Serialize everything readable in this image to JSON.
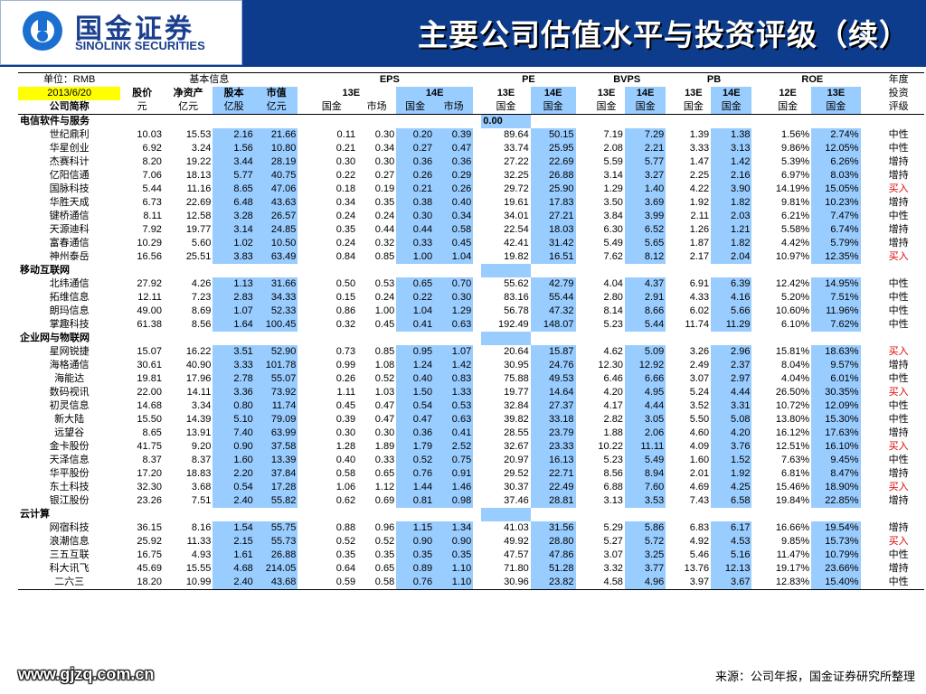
{
  "header": {
    "logo_cn": "国金证券",
    "logo_en": "SINOLINK SECURITIES",
    "title": "主要公司估值水平与投资评级（续）"
  },
  "table": {
    "unit_label": "单位：RMB",
    "date": "2013/6/20",
    "col_company": "公司简称",
    "group_basic": "基本信息",
    "group_eps": "EPS",
    "group_pe": "PE",
    "group_bvps": "BVPS",
    "group_pb": "PB",
    "group_roe": "ROE",
    "rating_header": [
      "年度",
      "投资",
      "评级"
    ],
    "basic_cols": [
      "股价",
      "净资产",
      "股本",
      "市值"
    ],
    "basic_units": [
      "元",
      "亿元",
      "亿股",
      "亿元"
    ],
    "years": [
      "13E",
      "14E",
      "13E",
      "14E",
      "13E",
      "14E",
      "13E",
      "14E",
      "12E",
      "13E"
    ],
    "sources": [
      "国金",
      "市场",
      "国金",
      "市场",
      "国金",
      "国金",
      "国金",
      "国金",
      "国金",
      "国金",
      "国金",
      "国金"
    ],
    "extra_value": "0.00",
    "sections": [
      {
        "name": "电信软件与服务",
        "rows": [
          {
            "name": "世纪鼎利",
            "v": [
              "10.03",
              "15.53",
              "2.16",
              "21.66",
              "0.11",
              "0.30",
              "0.20",
              "0.39",
              "89.64",
              "50.15",
              "7.19",
              "7.29",
              "1.39",
              "1.38",
              "1.56%",
              "2.74%"
            ],
            "rating": "中性"
          },
          {
            "name": "华星创业",
            "v": [
              "6.92",
              "3.24",
              "1.56",
              "10.80",
              "0.21",
              "0.34",
              "0.27",
              "0.47",
              "33.74",
              "25.95",
              "2.08",
              "2.21",
              "3.33",
              "3.13",
              "9.86%",
              "12.05%"
            ],
            "rating": "中性"
          },
          {
            "name": "杰赛科计",
            "v": [
              "8.20",
              "19.22",
              "3.44",
              "28.19",
              "0.30",
              "0.30",
              "0.36",
              "0.36",
              "27.22",
              "22.69",
              "5.59",
              "5.77",
              "1.47",
              "1.42",
              "5.39%",
              "6.26%"
            ],
            "rating": "增持"
          },
          {
            "name": "亿阳信通",
            "v": [
              "7.06",
              "18.13",
              "5.77",
              "40.75",
              "0.22",
              "0.27",
              "0.26",
              "0.29",
              "32.25",
              "26.88",
              "3.14",
              "3.27",
              "2.25",
              "2.16",
              "6.97%",
              "8.03%"
            ],
            "rating": "增持"
          },
          {
            "name": "国脉科技",
            "v": [
              "5.44",
              "11.16",
              "8.65",
              "47.06",
              "0.18",
              "0.19",
              "0.21",
              "0.26",
              "29.72",
              "25.90",
              "1.29",
              "1.40",
              "4.22",
              "3.90",
              "14.19%",
              "15.05%"
            ],
            "rating": "买入"
          },
          {
            "name": "华胜天成",
            "v": [
              "6.73",
              "22.69",
              "6.48",
              "43.63",
              "0.34",
              "0.35",
              "0.38",
              "0.40",
              "19.61",
              "17.83",
              "3.50",
              "3.69",
              "1.92",
              "1.82",
              "9.81%",
              "10.23%"
            ],
            "rating": "增持"
          },
          {
            "name": "键桥通信",
            "v": [
              "8.11",
              "12.58",
              "3.28",
              "26.57",
              "0.24",
              "0.24",
              "0.30",
              "0.34",
              "34.01",
              "27.21",
              "3.84",
              "3.99",
              "2.11",
              "2.03",
              "6.21%",
              "7.47%"
            ],
            "rating": "中性"
          },
          {
            "name": "天源迪科",
            "v": [
              "7.92",
              "19.77",
              "3.14",
              "24.85",
              "0.35",
              "0.44",
              "0.44",
              "0.58",
              "22.54",
              "18.03",
              "6.30",
              "6.52",
              "1.26",
              "1.21",
              "5.58%",
              "6.74%"
            ],
            "rating": "增持"
          },
          {
            "name": "富春通信",
            "v": [
              "10.29",
              "5.60",
              "1.02",
              "10.50",
              "0.24",
              "0.32",
              "0.33",
              "0.45",
              "42.41",
              "31.42",
              "5.49",
              "5.65",
              "1.87",
              "1.82",
              "4.42%",
              "5.79%"
            ],
            "rating": "增持"
          },
          {
            "name": "神州泰岳",
            "v": [
              "16.56",
              "25.51",
              "3.83",
              "63.49",
              "0.84",
              "0.85",
              "1.00",
              "1.04",
              "19.82",
              "16.51",
              "7.62",
              "8.12",
              "2.17",
              "2.04",
              "10.97%",
              "12.35%"
            ],
            "rating": "买入"
          }
        ]
      },
      {
        "name": "移动互联网",
        "rows": [
          {
            "name": "北纬通信",
            "v": [
              "27.92",
              "4.26",
              "1.13",
              "31.66",
              "0.50",
              "0.53",
              "0.65",
              "0.70",
              "55.62",
              "42.79",
              "4.04",
              "4.37",
              "6.91",
              "6.39",
              "12.42%",
              "14.95%"
            ],
            "rating": "中性"
          },
          {
            "name": "拓维信息",
            "v": [
              "12.11",
              "7.23",
              "2.83",
              "34.33",
              "0.15",
              "0.24",
              "0.22",
              "0.30",
              "83.16",
              "55.44",
              "2.80",
              "2.91",
              "4.33",
              "4.16",
              "5.20%",
              "7.51%"
            ],
            "rating": "中性"
          },
          {
            "name": "朗玛信息",
            "v": [
              "49.00",
              "8.69",
              "1.07",
              "52.33",
              "0.86",
              "1.00",
              "1.04",
              "1.29",
              "56.78",
              "47.32",
              "8.14",
              "8.66",
              "6.02",
              "5.66",
              "10.60%",
              "11.96%"
            ],
            "rating": "中性"
          },
          {
            "name": "掌趣科技",
            "v": [
              "61.38",
              "8.56",
              "1.64",
              "100.45",
              "0.32",
              "0.45",
              "0.41",
              "0.63",
              "192.49",
              "148.07",
              "5.23",
              "5.44",
              "11.74",
              "11.29",
              "6.10%",
              "7.62%"
            ],
            "rating": "中性"
          }
        ]
      },
      {
        "name": "企业网与物联网",
        "rows": [
          {
            "name": "星网锐捷",
            "v": [
              "15.07",
              "16.22",
              "3.51",
              "52.90",
              "0.73",
              "0.85",
              "0.95",
              "1.07",
              "20.64",
              "15.87",
              "4.62",
              "5.09",
              "3.26",
              "2.96",
              "15.81%",
              "18.63%"
            ],
            "rating": "买入"
          },
          {
            "name": "海格通信",
            "v": [
              "30.61",
              "40.90",
              "3.33",
              "101.78",
              "0.99",
              "1.08",
              "1.24",
              "1.42",
              "30.95",
              "24.76",
              "12.30",
              "12.92",
              "2.49",
              "2.37",
              "8.04%",
              "9.57%"
            ],
            "rating": "增持"
          },
          {
            "name": "海能达",
            "v": [
              "19.81",
              "17.96",
              "2.78",
              "55.07",
              "0.26",
              "0.52",
              "0.40",
              "0.83",
              "75.88",
              "49.53",
              "6.46",
              "6.66",
              "3.07",
              "2.97",
              "4.04%",
              "6.01%"
            ],
            "rating": "中性"
          },
          {
            "name": "数码视讯",
            "v": [
              "22.00",
              "14.11",
              "3.36",
              "73.92",
              "1.11",
              "1.03",
              "1.50",
              "1.33",
              "19.77",
              "14.64",
              "4.20",
              "4.95",
              "5.24",
              "4.44",
              "26.50%",
              "30.35%"
            ],
            "rating": "买入"
          },
          {
            "name": "初灵信息",
            "v": [
              "14.68",
              "3.34",
              "0.80",
              "11.74",
              "0.45",
              "0.47",
              "0.54",
              "0.53",
              "32.84",
              "27.37",
              "4.17",
              "4.44",
              "3.52",
              "3.31",
              "10.72%",
              "12.09%"
            ],
            "rating": "中性"
          },
          {
            "name": "新大陆",
            "v": [
              "15.50",
              "14.39",
              "5.10",
              "79.09",
              "0.39",
              "0.47",
              "0.47",
              "0.63",
              "39.82",
              "33.18",
              "2.82",
              "3.05",
              "5.50",
              "5.08",
              "13.80%",
              "15.30%"
            ],
            "rating": "中性"
          },
          {
            "name": "远望谷",
            "v": [
              "8.65",
              "13.91",
              "7.40",
              "63.99",
              "0.30",
              "0.30",
              "0.36",
              "0.41",
              "28.55",
              "23.79",
              "1.88",
              "2.06",
              "4.60",
              "4.20",
              "16.12%",
              "17.63%"
            ],
            "rating": "增持"
          },
          {
            "name": "金卡股份",
            "v": [
              "41.75",
              "9.20",
              "0.90",
              "37.58",
              "1.28",
              "1.89",
              "1.79",
              "2.52",
              "32.67",
              "23.33",
              "10.22",
              "11.11",
              "4.09",
              "3.76",
              "12.51%",
              "16.10%"
            ],
            "rating": "买入"
          },
          {
            "name": "天泽信息",
            "v": [
              "8.37",
              "8.37",
              "1.60",
              "13.39",
              "0.40",
              "0.33",
              "0.52",
              "0.75",
              "20.97",
              "16.13",
              "5.23",
              "5.49",
              "1.60",
              "1.52",
              "7.63%",
              "9.45%"
            ],
            "rating": "中性"
          },
          {
            "name": "华平股份",
            "v": [
              "17.20",
              "18.83",
              "2.20",
              "37.84",
              "0.58",
              "0.65",
              "0.76",
              "0.91",
              "29.52",
              "22.71",
              "8.56",
              "8.94",
              "2.01",
              "1.92",
              "6.81%",
              "8.47%"
            ],
            "rating": "增持"
          },
          {
            "name": "东土科技",
            "v": [
              "32.30",
              "3.68",
              "0.54",
              "17.28",
              "1.06",
              "1.12",
              "1.44",
              "1.46",
              "30.37",
              "22.49",
              "6.88",
              "7.60",
              "4.69",
              "4.25",
              "15.46%",
              "18.90%"
            ],
            "rating": "买入"
          },
          {
            "name": "银江股份",
            "v": [
              "23.26",
              "7.51",
              "2.40",
              "55.82",
              "0.62",
              "0.69",
              "0.81",
              "0.98",
              "37.46",
              "28.81",
              "3.13",
              "3.53",
              "7.43",
              "6.58",
              "19.84%",
              "22.85%"
            ],
            "rating": "增持"
          }
        ]
      },
      {
        "name": "云计算",
        "rows": [
          {
            "name": "网宿科技",
            "v": [
              "36.15",
              "8.16",
              "1.54",
              "55.75",
              "0.88",
              "0.96",
              "1.15",
              "1.34",
              "41.03",
              "31.56",
              "5.29",
              "5.86",
              "6.83",
              "6.17",
              "16.66%",
              "19.54%"
            ],
            "rating": "增持"
          },
          {
            "name": "浪潮信息",
            "v": [
              "25.92",
              "11.33",
              "2.15",
              "55.73",
              "0.52",
              "0.52",
              "0.90",
              "0.90",
              "49.92",
              "28.80",
              "5.27",
              "5.72",
              "4.92",
              "4.53",
              "9.85%",
              "15.73%"
            ],
            "rating": "买入"
          },
          {
            "name": "三五互联",
            "v": [
              "16.75",
              "4.93",
              "1.61",
              "26.88",
              "0.35",
              "0.35",
              "0.35",
              "0.35",
              "47.57",
              "47.86",
              "3.07",
              "3.25",
              "5.46",
              "5.16",
              "11.47%",
              "10.79%"
            ],
            "rating": "中性"
          },
          {
            "name": "科大讯飞",
            "v": [
              "45.69",
              "15.55",
              "4.68",
              "214.05",
              "0.64",
              "0.65",
              "0.89",
              "1.10",
              "71.80",
              "51.28",
              "3.32",
              "3.77",
              "13.76",
              "12.13",
              "19.17%",
              "23.66%"
            ],
            "rating": "增持"
          },
          {
            "name": "二六三",
            "v": [
              "18.20",
              "10.99",
              "2.40",
              "43.68",
              "0.59",
              "0.58",
              "0.76",
              "1.10",
              "30.96",
              "23.82",
              "4.58",
              "4.96",
              "3.97",
              "3.67",
              "12.83%",
              "15.40%"
            ],
            "rating": "中性"
          }
        ]
      }
    ]
  },
  "footer": {
    "website": "www.gjzq.com.cn",
    "source": "来源：公司年报，国金证券研究所整理"
  },
  "colors": {
    "header_bg": "#0d3c8c",
    "highlight": "#99ccff",
    "date_bg": "#ffff00",
    "buy_red": "#e00000"
  }
}
